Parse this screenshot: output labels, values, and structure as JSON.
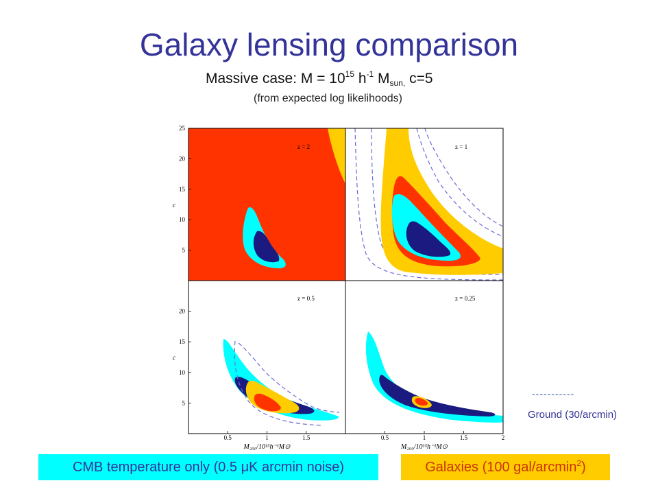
{
  "title": "Galaxy lensing comparison",
  "subtitle": {
    "prefix": "Massive case: M = 10",
    "exp": "15",
    "h": " h",
    "h_exp": "-1",
    "msun": " M",
    "msun_sub": "sun,",
    "suffix": " c=5"
  },
  "note": "(from expected log likelihoods)",
  "legend": {
    "dashed_symbol": "-----------",
    "dashed_label": "Ground (30/arcmin)"
  },
  "boxes": {
    "cmb": "CMB temperature only (0.5 μK  arcmin noise)",
    "galaxies": "Galaxies (100 gal/arcmin",
    "galaxies_exp": "2",
    "galaxies_close": ")"
  },
  "colors": {
    "cmb": "#00ffff",
    "cmb_inner": "#1a1a80",
    "galaxies_outer": "#ffcc00",
    "galaxies_inner": "#ff3300",
    "ground_dashed": "#6a6ad8"
  },
  "chart_data": {
    "type": "contour",
    "xlabel": "M₂₀₀/10¹⁵h⁻¹M⊙",
    "ylabel": "c",
    "xlim": [
      0,
      2
    ],
    "ylim": [
      0,
      25
    ],
    "xticks": [
      "0.5",
      "1",
      "1.5",
      "2"
    ],
    "yticks": [
      "5",
      "10",
      "15",
      "20",
      "25"
    ],
    "panels": [
      {
        "label": "z = 2",
        "fiducial": {
          "M": 1.0,
          "c": 5
        }
      },
      {
        "label": "z = 1",
        "fiducial": {
          "M": 1.0,
          "c": 5
        }
      },
      {
        "label": "z = 0.5",
        "fiducial": {
          "M": 1.0,
          "c": 5
        }
      },
      {
        "label": "z = 0.25",
        "fiducial": {
          "M": 1.0,
          "c": 5
        }
      }
    ]
  }
}
